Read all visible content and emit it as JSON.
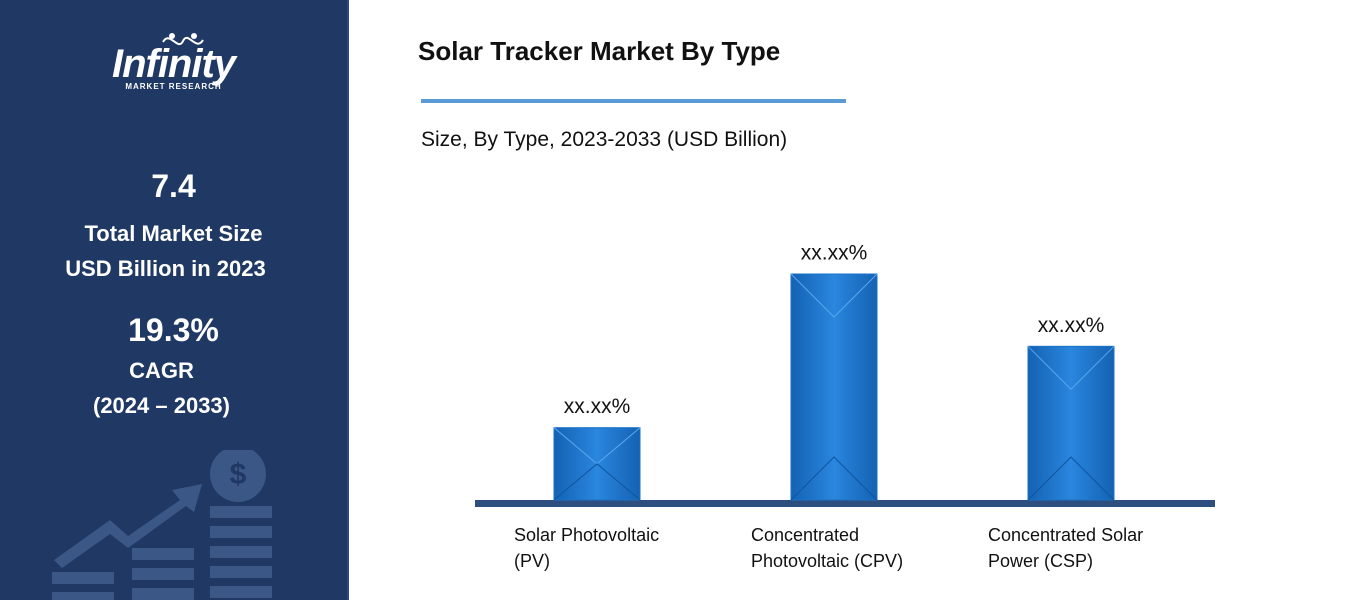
{
  "sidebar": {
    "logo": {
      "name": "Infinity",
      "tagline": "MARKET RESEARCH"
    },
    "market_size": {
      "value": 7.4,
      "label_lines": [
        "Total Market Size",
        "USD Billion in 2023"
      ]
    },
    "cagr": {
      "value": "19.3%",
      "label": "CAGR",
      "period": "(2024 – 2033)"
    }
  },
  "chart_data": {
    "type": "bar",
    "title": "Solar Tracker Market By Type",
    "subtitle": "Size, By Type, 2023-2033 (USD Billion)",
    "categories": [
      "Solar Photovoltaic (PV)",
      "Concentrated Photovoltaic (CPV)",
      "Concentrated Solar Power (CSP)"
    ],
    "values": [
      16,
      50,
      34
    ],
    "value_labels": [
      "xx.xx%",
      "xx.xx%",
      "xx.xx%"
    ],
    "color": "#1a72c8"
  }
}
